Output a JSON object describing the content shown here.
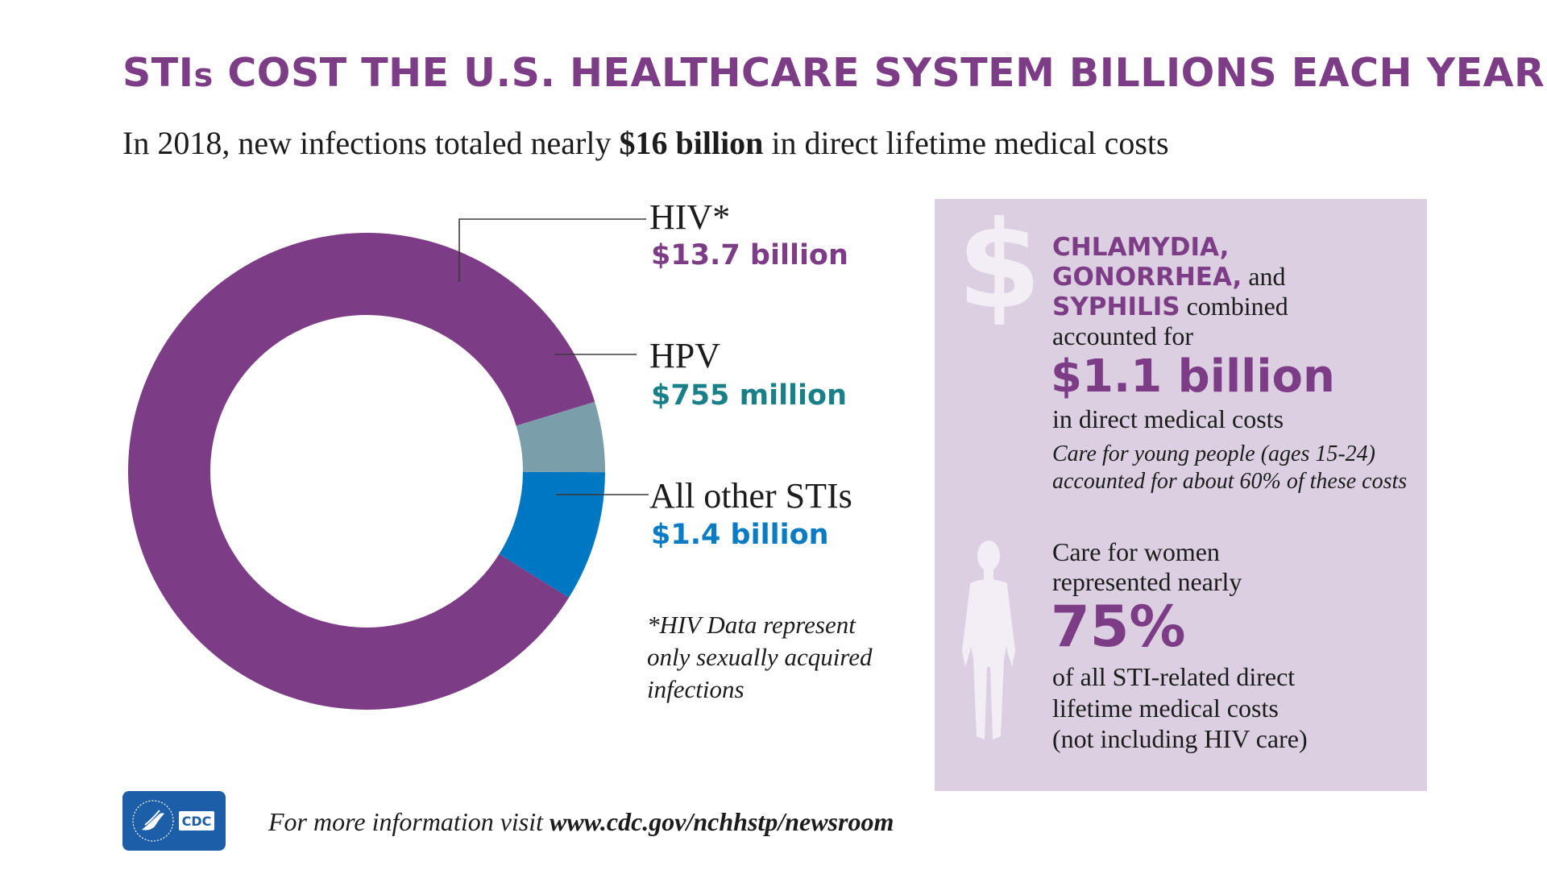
{
  "headline": {
    "main": "STI",
    "small_s": "s",
    "rest": " COST THE U.S. HEALTHCARE SYSTEM BILLIONS EACH YEAR"
  },
  "subhead": {
    "before": "In 2018, new infections totaled nearly ",
    "bold": "$16 billion",
    "after": " in direct lifetime medical costs"
  },
  "colors": {
    "purple": "#7d3c86",
    "hpv": "#7a9eaa",
    "other": "#0077c2",
    "hpv_text": "#1a8087",
    "other_text": "#0b7bc4",
    "panel": "#dccfe2"
  },
  "chart_data": {
    "type": "pie",
    "donut": true,
    "series": [
      {
        "name": "HIV*",
        "value_label": "$13.7 billion",
        "value": 13.7,
        "color": "#7d3c86"
      },
      {
        "name": "HPV",
        "value_label": "$755 million",
        "value": 0.755,
        "color": "#7a9eaa"
      },
      {
        "name": "All other STIs",
        "value_label": "$1.4 billion",
        "value": 1.4,
        "color": "#0077c2"
      }
    ],
    "footnote": "*HIV Data represent only sexually acquired infections"
  },
  "panel": {
    "icon_top": "dollar-icon",
    "chlamydia": "CHLAMYDIA,",
    "gonorrhea": "GONORRHEA,",
    "and": " and",
    "syphilis": "SYPHILIS",
    "combined": " combined",
    "accounted": "accounted for",
    "big_value": "$1.1 billion",
    "direct": "in direct medical costs",
    "young_line1": "Care for young people (ages 15-24)",
    "young_line2": "accounted for about 60% of these costs",
    "icon_bottom": "person-icon",
    "women_line1": "Care for women",
    "women_line2": "represented nearly",
    "pct": "75%",
    "all_line1": "of all STI-related direct",
    "all_line2": "lifetime medical costs",
    "all_line3": "(not including HIV care)"
  },
  "footer": {
    "logo_text": "CDC",
    "before": "For more information visit ",
    "url": "www.cdc.gov/nchhstp/newsroom"
  }
}
